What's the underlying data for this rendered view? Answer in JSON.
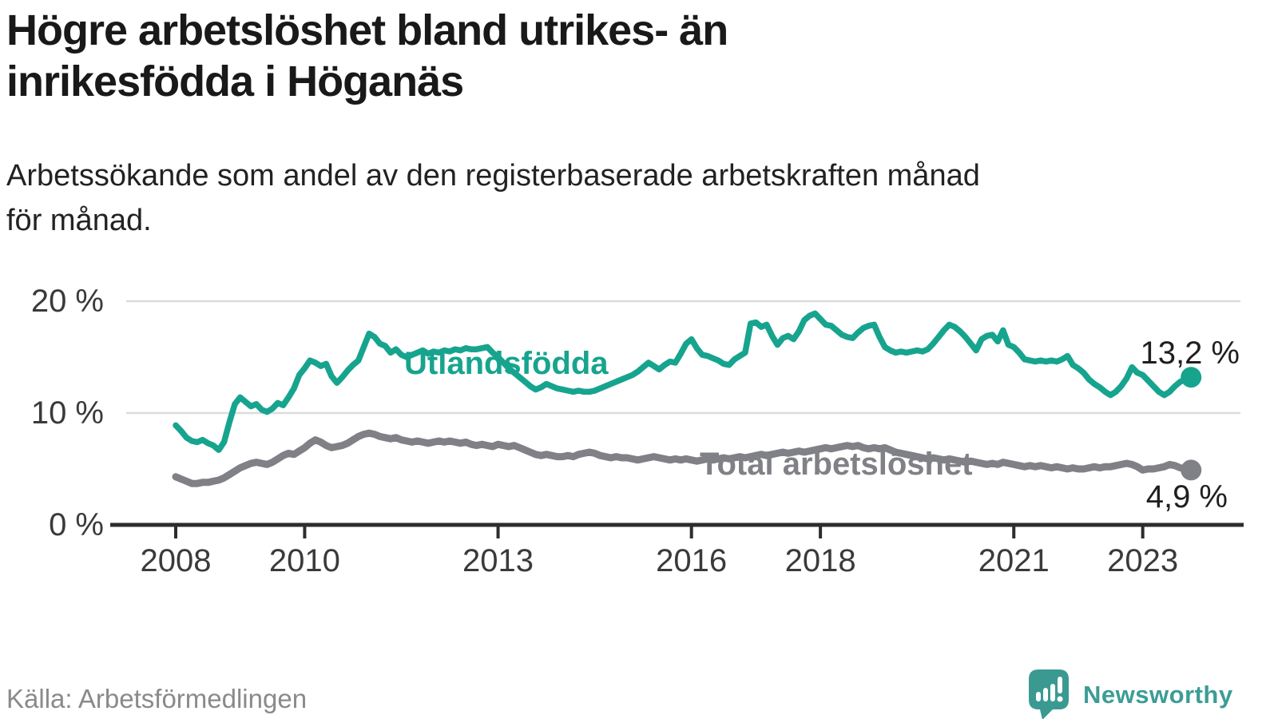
{
  "title_lines": [
    "Högre arbetslöshet bland utrikes- än",
    "inrikesfödda i Höganäs"
  ],
  "subtitle_lines": [
    "Arbetssökande som andel av den registerbaserade arbetskraften månad",
    "för månad."
  ],
  "source": "Källa: Arbetsförmedlingen",
  "branding": {
    "logo_text": "Newsworthy",
    "logo_color": "#3a9a92",
    "logo_icon": "speech-bubble-bar-chart-exclamation"
  },
  "colors": {
    "title": "#191919",
    "axis": "#2d2d2d",
    "gridline": "#dcdcdc",
    "tick_labels": "#3a3a3a",
    "end_labels": "#1f1f1f",
    "source_text": "#8a8a8a"
  },
  "chart_data": {
    "type": "line",
    "unit": "%",
    "title": "Högre arbetslöshet bland utrikes- än inrikesfödda i Höganäs",
    "subtitle": "Arbetssökande som andel av den registerbaserade arbetskraften månad för månad.",
    "x_start_year": 2008,
    "points_per_year": 12,
    "x_end": "2023-10",
    "grid": "horizontal-only",
    "ylim": [
      0,
      21
    ],
    "y_axis": {
      "ticks": [
        {
          "label": "0 %",
          "value": 0
        },
        {
          "label": "10 %",
          "value": 10
        },
        {
          "label": "20 %",
          "value": 20
        }
      ]
    },
    "x_axis": {
      "tick_years": [
        2008,
        2010,
        2013,
        2016,
        2018,
        2021,
        2023
      ]
    },
    "series": [
      {
        "name": "Utlandsfödda",
        "color": "#17a48e",
        "end_label": "13,2 %",
        "end_value": 13.2,
        "values": [
          8.9,
          8.4,
          7.8,
          7.5,
          7.4,
          7.6,
          7.3,
          7.1,
          6.7,
          7.4,
          9.2,
          10.8,
          11.4,
          11.0,
          10.6,
          10.8,
          10.3,
          10.1,
          10.4,
          10.9,
          10.7,
          11.4,
          12.2,
          13.4,
          14.0,
          14.7,
          14.5,
          14.2,
          14.4,
          13.3,
          12.7,
          13.2,
          13.8,
          14.3,
          14.7,
          15.9,
          17.1,
          16.8,
          16.2,
          16.0,
          15.4,
          15.7,
          15.2,
          15.0,
          15.2,
          15.4,
          15.6,
          15.3,
          15.5,
          15.4,
          15.6,
          15.5,
          15.7,
          15.6,
          15.8,
          15.7,
          15.7,
          15.8,
          15.9,
          15.4,
          15.0,
          14.5,
          14.0,
          13.6,
          13.2,
          12.8,
          12.4,
          12.1,
          12.3,
          12.6,
          12.4,
          12.2,
          12.1,
          12.0,
          11.9,
          12.0,
          11.9,
          11.9,
          12.0,
          12.2,
          12.4,
          12.6,
          12.8,
          13.0,
          13.2,
          13.4,
          13.7,
          14.1,
          14.5,
          14.2,
          13.9,
          14.3,
          14.6,
          14.5,
          15.3,
          16.2,
          16.6,
          15.8,
          15.2,
          15.1,
          14.9,
          14.7,
          14.4,
          14.3,
          14.8,
          15.1,
          15.4,
          18.0,
          18.1,
          17.7,
          17.9,
          16.9,
          16.1,
          16.7,
          16.9,
          16.6,
          17.3,
          18.3,
          18.7,
          18.9,
          18.4,
          17.9,
          17.8,
          17.4,
          17.0,
          16.8,
          16.7,
          17.2,
          17.6,
          17.8,
          17.9,
          16.8,
          15.9,
          15.6,
          15.4,
          15.5,
          15.4,
          15.5,
          15.6,
          15.5,
          15.7,
          16.2,
          16.8,
          17.4,
          17.9,
          17.7,
          17.3,
          16.8,
          16.2,
          15.6,
          16.6,
          16.9,
          17.0,
          16.4,
          17.4,
          16.1,
          15.9,
          15.4,
          14.8,
          14.7,
          14.6,
          14.7,
          14.6,
          14.7,
          14.6,
          14.8,
          15.1,
          14.3,
          14.0,
          13.6,
          13.0,
          12.6,
          12.3,
          11.9,
          11.6,
          11.9,
          12.4,
          13.1,
          14.1,
          13.6,
          13.4,
          12.9,
          12.4,
          11.9,
          11.6,
          11.9,
          12.4,
          12.8,
          13.0,
          13.2
        ]
      },
      {
        "name": "Total arbetslöshet",
        "color": "#808087",
        "end_label": "4,9 %",
        "end_value": 4.9,
        "values": [
          4.3,
          4.1,
          3.9,
          3.7,
          3.7,
          3.8,
          3.8,
          3.9,
          4.0,
          4.2,
          4.5,
          4.8,
          5.1,
          5.3,
          5.5,
          5.6,
          5.5,
          5.4,
          5.6,
          5.9,
          6.2,
          6.4,
          6.3,
          6.6,
          6.9,
          7.3,
          7.6,
          7.4,
          7.1,
          6.9,
          7.0,
          7.1,
          7.3,
          7.6,
          7.9,
          8.1,
          8.2,
          8.1,
          7.9,
          7.8,
          7.7,
          7.8,
          7.6,
          7.5,
          7.4,
          7.5,
          7.4,
          7.3,
          7.4,
          7.5,
          7.4,
          7.5,
          7.4,
          7.3,
          7.4,
          7.2,
          7.1,
          7.2,
          7.1,
          7.0,
          7.2,
          7.1,
          7.0,
          7.1,
          6.9,
          6.7,
          6.5,
          6.3,
          6.2,
          6.3,
          6.2,
          6.1,
          6.1,
          6.2,
          6.1,
          6.3,
          6.4,
          6.5,
          6.4,
          6.2,
          6.1,
          6.0,
          6.1,
          6.0,
          6.0,
          5.9,
          5.8,
          5.9,
          6.0,
          6.1,
          6.0,
          5.9,
          5.8,
          5.9,
          5.8,
          5.9,
          5.8,
          5.7,
          5.8,
          5.9,
          5.8,
          5.9,
          6.0,
          5.9,
          6.0,
          6.1,
          6.0,
          6.1,
          6.2,
          6.3,
          6.2,
          6.3,
          6.4,
          6.5,
          6.4,
          6.5,
          6.6,
          6.5,
          6.6,
          6.7,
          6.8,
          6.9,
          6.8,
          6.9,
          7.0,
          7.1,
          7.0,
          7.1,
          6.9,
          6.8,
          6.9,
          6.8,
          6.9,
          6.7,
          6.5,
          6.4,
          6.3,
          6.2,
          6.1,
          6.0,
          5.9,
          6.0,
          5.9,
          5.8,
          5.9,
          5.8,
          5.7,
          5.6,
          5.7,
          5.6,
          5.5,
          5.4,
          5.5,
          5.4,
          5.6,
          5.5,
          5.4,
          5.3,
          5.2,
          5.3,
          5.2,
          5.3,
          5.2,
          5.1,
          5.2,
          5.1,
          5.0,
          5.1,
          5.0,
          5.0,
          5.1,
          5.2,
          5.1,
          5.2,
          5.2,
          5.3,
          5.4,
          5.5,
          5.4,
          5.2,
          4.9,
          5.0,
          5.0,
          5.1,
          5.2,
          5.4,
          5.3,
          5.1,
          5.0,
          4.9
        ]
      }
    ]
  }
}
